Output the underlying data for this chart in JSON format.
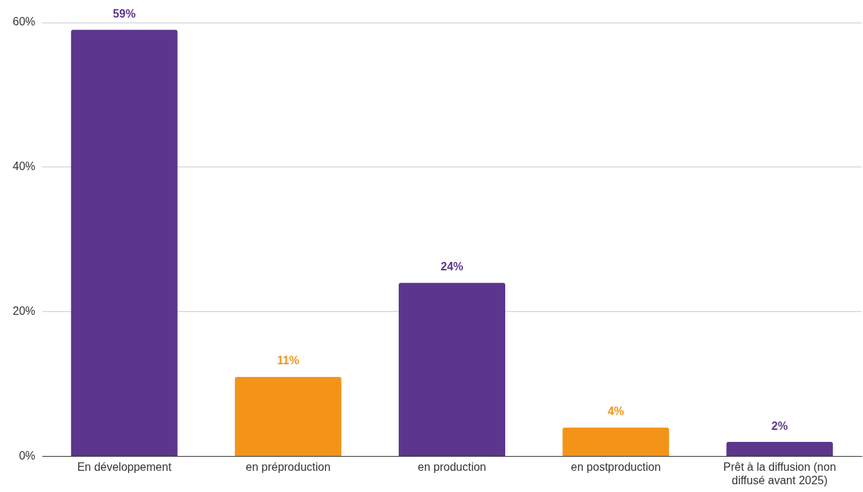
{
  "chart_data": {
    "type": "bar",
    "categories": [
      "En développement",
      "en préproduction",
      "en production",
      "en postproduction",
      "Prêt à la diffusion (non diffusé avant 2025)"
    ],
    "values": [
      59,
      11,
      24,
      4,
      2
    ],
    "colors": [
      "#5c368d",
      "#f39419",
      "#5c368d",
      "#f39419",
      "#5c368d"
    ],
    "value_labels": [
      "59%",
      "11%",
      "24%",
      "4%",
      "2%"
    ],
    "ylim": [
      0,
      60
    ],
    "yticks": [
      {
        "value": 0,
        "label": "0%"
      },
      {
        "value": 20,
        "label": "20%"
      },
      {
        "value": 40,
        "label": "40%"
      },
      {
        "value": 60,
        "label": "60%"
      }
    ],
    "grid": "y",
    "legend": false
  }
}
